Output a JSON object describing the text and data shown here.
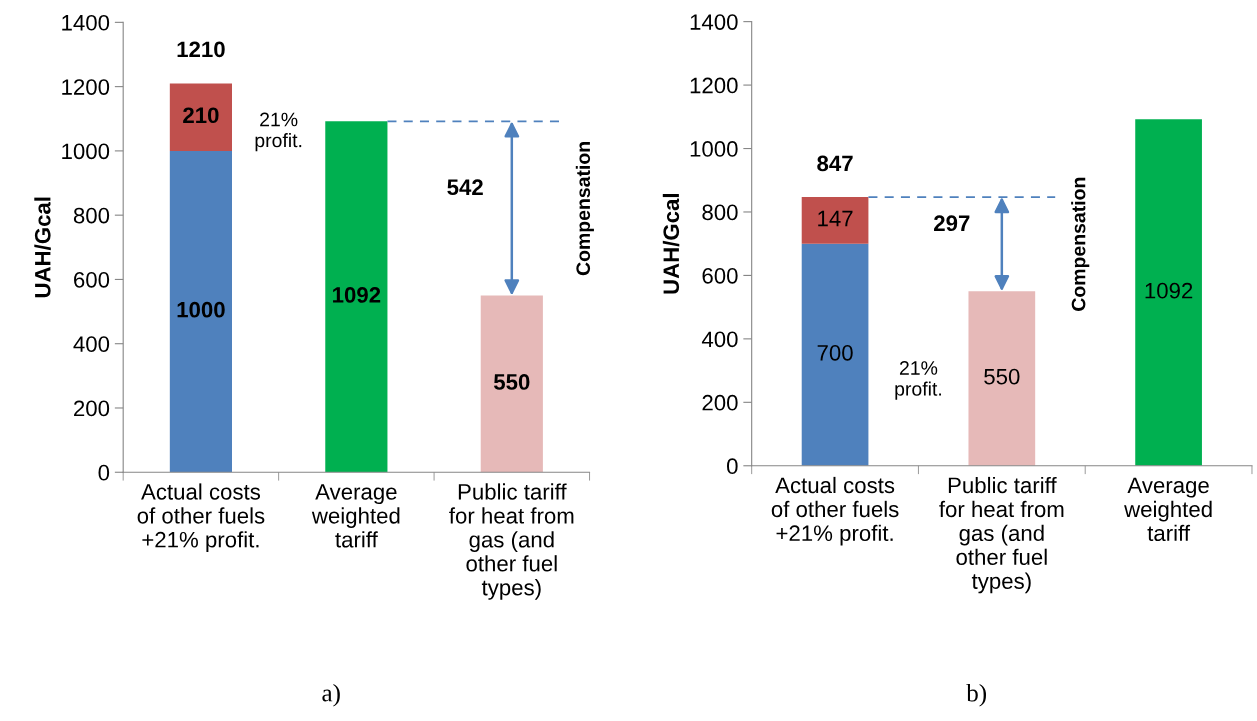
{
  "chart_data": [
    {
      "type": "bar",
      "stacked": true,
      "ylabel": "UAH/Gcal",
      "categories": [
        "Actual costs\nof other fuels\n+21% profit.",
        "Average\nweighted\ntariff",
        "Public tariff\nfor heat from\ngas (and\nother fuel\ntypes)"
      ],
      "series": [
        {
          "colors": [
            "#4f81bd",
            "#00b050",
            "#e6b9b8"
          ],
          "values": [
            1000,
            1092,
            550
          ]
        },
        {
          "color": "#c0504d",
          "values": [
            210,
            null,
            null
          ]
        }
      ],
      "ylim": [
        0,
        1400
      ],
      "yticks": [
        0,
        200,
        400,
        600,
        800,
        1000,
        1200,
        1400
      ],
      "data_labels": true,
      "totals": [
        "1210",
        null,
        null
      ],
      "ref_lines": [
        {
          "axis": "y",
          "value": 1092,
          "color": "#4f81bd",
          "line_style": "dashed"
        }
      ],
      "annotations": [
        "21%\nprofit.",
        "542",
        "Compensation",
        "a)"
      ]
    },
    {
      "type": "bar",
      "stacked": true,
      "ylabel": "UAH/Gcal",
      "categories": [
        "Actual costs\nof other fuels\n+21% profit.",
        "Public tariff\nfor heat from\ngas (and\nother fuel\ntypes)",
        "Average\nweighted\ntariff"
      ],
      "series": [
        {
          "colors": [
            "#4f81bd",
            "#e6b9b8",
            "#00b050"
          ],
          "values": [
            700,
            550,
            1092
          ]
        },
        {
          "color": "#c0504d",
          "values": [
            147,
            null,
            null
          ]
        }
      ],
      "ylim": [
        0,
        1400
      ],
      "yticks": [
        0,
        200,
        400,
        600,
        800,
        1000,
        1200,
        1400
      ],
      "data_labels": true,
      "totals": [
        "847",
        null,
        null
      ],
      "ref_lines": [
        {
          "axis": "y",
          "value": 847,
          "color": "#4f81bd",
          "line_style": "dashed"
        }
      ],
      "annotations": [
        "21%\nprofit.",
        "297",
        "Compensation",
        "b)"
      ]
    }
  ]
}
